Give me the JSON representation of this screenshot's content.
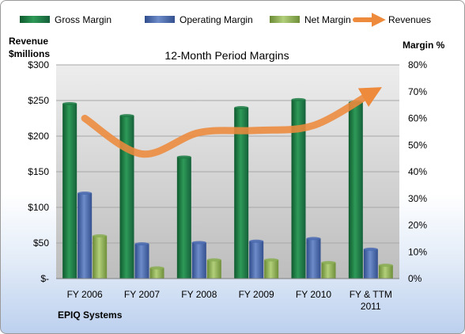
{
  "chart_data": {
    "type": "bar",
    "title": "12-Month Period Margins",
    "company": "EPIQ Systems",
    "y_left_label": [
      "Revenue",
      "$millions"
    ],
    "y_right_label": "Margin %",
    "categories": [
      [
        "FY 2006"
      ],
      [
        "FY 2007"
      ],
      [
        "FY 2008"
      ],
      [
        "FY 2009"
      ],
      [
        "FY 2010"
      ],
      [
        "FY & TTM",
        "2011"
      ]
    ],
    "left_axis": {
      "min": 0,
      "max": 300,
      "step": 50,
      "tick_labels": [
        "$-",
        "$50",
        "$100",
        "$150",
        "$200",
        "$250",
        "$300"
      ]
    },
    "right_axis": {
      "min": 0,
      "max": 80,
      "step": 10,
      "tick_labels": [
        "0%",
        "10%",
        "20%",
        "30%",
        "40%",
        "50%",
        "60%",
        "70%",
        "80%"
      ]
    },
    "grid": true,
    "legend_position": "top",
    "series": [
      {
        "name": "Gross Margin",
        "type": "bar",
        "axis": "right",
        "color": "#1e7c45",
        "values": [
          65.5,
          61,
          45.5,
          64,
          67,
          66
        ]
      },
      {
        "name": "Operating Margin",
        "type": "bar",
        "axis": "right",
        "color": "#4a6ab0",
        "values": [
          32,
          13,
          13.5,
          14,
          15,
          11
        ]
      },
      {
        "name": "Net Margin",
        "type": "bar",
        "axis": "right",
        "color": "#8aad52",
        "values": [
          16,
          4,
          7,
          7,
          6,
          5
        ]
      },
      {
        "name": "Revenues",
        "type": "line",
        "axis": "left",
        "color": "#ed8a3c",
        "values": [
          225,
          175,
          205,
          208,
          215,
          260
        ]
      }
    ]
  }
}
